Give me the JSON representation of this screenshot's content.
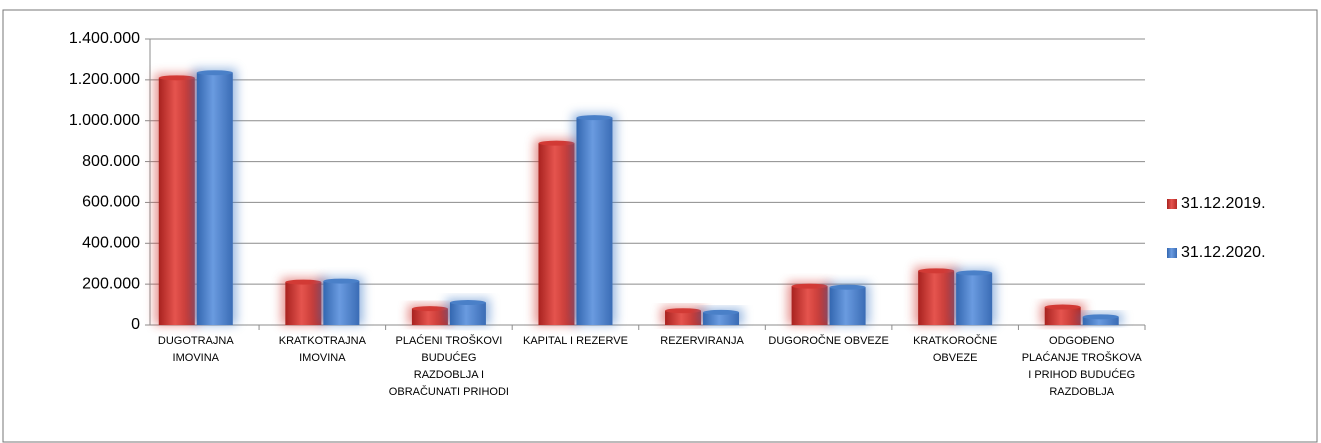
{
  "chart_data": {
    "type": "bar",
    "categories": [
      "DUGOTRAJNA IMOVINA",
      "KRATKOTRAJNA IMOVINA",
      "PLAĆENI TROŠKOVI BUDUĆEG RAZDOBLJA I OBRAČUNATI PRIHODI",
      "KAPITAL I REZERVE",
      "REZERVIRANJA",
      "DUGOROČNE OBVEZE",
      "KRATKOROČNE OBVEZE",
      "ODGOĐENO PLAĆANJE TROŠKOVA I PRIHOD BUDUĆEG RAZDOBLJA"
    ],
    "series": [
      {
        "name": "31.12.2019.",
        "color": "#d23a35",
        "values": [
          1210000,
          210000,
          80000,
          890000,
          70000,
          190000,
          265000,
          88000
        ]
      },
      {
        "name": "31.12.2020.",
        "color": "#4a80c8",
        "values": [
          1235000,
          215000,
          110000,
          1015000,
          62000,
          185000,
          255000,
          40000
        ]
      }
    ],
    "ylim": [
      0,
      1400000
    ],
    "yticks": [
      0,
      {
        "value": 200000,
        "label": "200.000"
      },
      {
        "value": 400000,
        "label": "400.000"
      },
      {
        "value": 600000,
        "label": "600.000"
      },
      {
        "value": 800000,
        "label": "800.000"
      },
      {
        "value": 1000000,
        "label": "1.000.000"
      },
      {
        "value": 1200000,
        "label": "1.200.000"
      },
      {
        "value": 1400000,
        "label": "1.400.000"
      }
    ],
    "grid": true,
    "legend": "right"
  }
}
